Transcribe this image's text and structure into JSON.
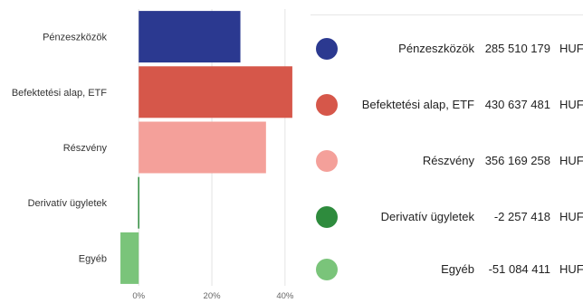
{
  "chart_data": {
    "type": "bar",
    "orientation": "horizontal",
    "categories": [
      "Pénzeszközök",
      "Befektetési alap, ETF",
      "Részvény",
      "Derivatív ügyletek",
      "Egyéb"
    ],
    "values": [
      27.8,
      42.0,
      34.8,
      -0.2,
      -5.0
    ],
    "value_unit": "%",
    "xlim": [
      -6,
      44
    ],
    "x_ticks": [
      0,
      20,
      40
    ],
    "x_tick_labels": [
      "0%",
      "20%",
      "40%"
    ],
    "grid": true,
    "colors": [
      "#2b3990",
      "#d6574a",
      "#f4a09a",
      "#2e8b3d",
      "#7ac47a"
    ],
    "legend": {
      "placement": "right",
      "entries": [
        {
          "name": "Pénzeszközök",
          "value": "285 510 179",
          "unit": "HUF",
          "color": "#2b3990"
        },
        {
          "name": "Befektetési alap, ETF",
          "value": "430 637 481",
          "unit": "HUF",
          "color": "#d6574a"
        },
        {
          "name": "Részvény",
          "value": "356 169 258",
          "unit": "HUF",
          "color": "#f4a09a"
        },
        {
          "name": "Derivatív ügyletek",
          "value": "-2 257 418",
          "unit": "HUF",
          "color": "#2e8b3d"
        },
        {
          "name": "Egyéb",
          "value": "-51 084 411",
          "unit": "HUF",
          "color": "#7ac47a"
        }
      ]
    }
  }
}
